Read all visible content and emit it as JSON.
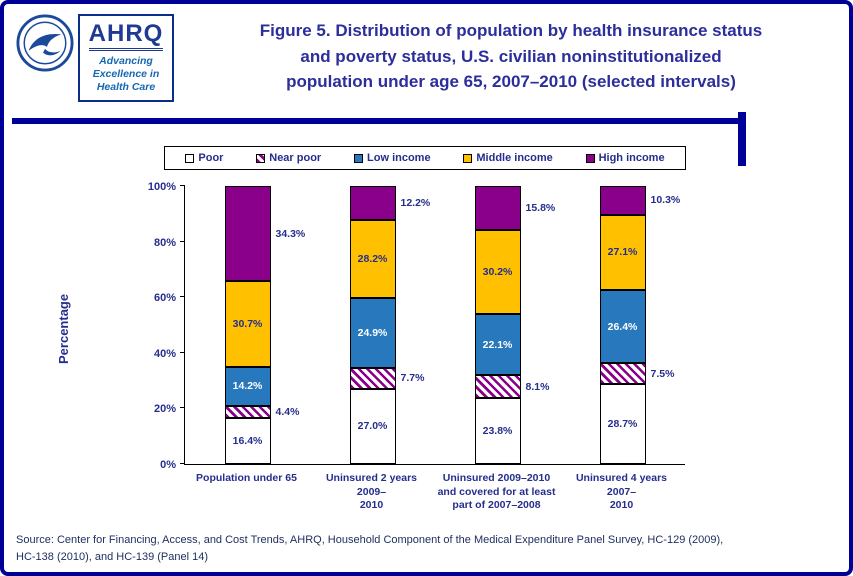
{
  "header": {
    "title_lines": [
      "Figure 5. Distribution of population by health insurance status",
      "and poverty status, U.S. civilian noninstitutionalized",
      "population under age 65, 2007–2010 (selected intervals)"
    ],
    "logo": {
      "ahrq_text": "AHRQ",
      "tagline_lines": [
        "Advancing",
        "Excellence in",
        "Health Care"
      ]
    }
  },
  "chart_data": {
    "type": "bar",
    "stacked": true,
    "unit": "%",
    "title": "Figure 5. Distribution of population by health insurance status and poverty status, U.S. civilian noninstitutionalized population under age 65, 2007–2010 (selected intervals)",
    "ylabel": "Percentage",
    "ylim": [
      0,
      100
    ],
    "yticks": [
      "0%",
      "20%",
      "40%",
      "60%",
      "80%",
      "100%"
    ],
    "grid": false,
    "legend_position": "top",
    "categories": [
      "Population under 65",
      "Uninsured 2 years 2009–2010",
      "Uninsured 2009–2010 and covered for at least part of 2007–2008",
      "Uninsured 4 years 2007–2010"
    ],
    "category_label_lines": [
      [
        "Population under 65"
      ],
      [
        "Uninsured 2 years 2009–",
        "2010"
      ],
      [
        "Uninsured 2009–2010",
        "and covered for at least",
        "part of 2007–2008"
      ],
      [
        "Uninsured 4 years 2007–",
        "2010"
      ]
    ],
    "series": [
      {
        "name": "Poor",
        "color": "#FFFFFF",
        "pattern": "solid",
        "label_style": "inside-dark",
        "values": [
          16.4,
          27.0,
          23.8,
          28.7
        ]
      },
      {
        "name": "Near poor",
        "color": "#8B008B",
        "pattern": "hatch",
        "label_style": "outside",
        "values": [
          4.4,
          7.7,
          8.1,
          7.5
        ]
      },
      {
        "name": "Low income",
        "color": "#2878BE",
        "pattern": "solid",
        "label_style": "inside-light",
        "values": [
          14.2,
          24.9,
          22.1,
          26.4
        ]
      },
      {
        "name": "Middle income",
        "color": "#FFC000",
        "pattern": "solid",
        "label_style": "inside-dark",
        "values": [
          30.7,
          28.2,
          30.2,
          27.1
        ]
      },
      {
        "name": "High income",
        "color": "#8B008B",
        "pattern": "solid",
        "label_style": "outside",
        "values": [
          34.3,
          12.2,
          15.8,
          10.3
        ]
      }
    ]
  },
  "source": {
    "lines": [
      "Source: Center for Financing, Access, and Cost Trends, AHRQ, Household Component of the Medical Expenditure Panel Survey, HC-129 (2009),",
      "HC-138 (2010), and HC-139 (Panel 14)"
    ]
  }
}
